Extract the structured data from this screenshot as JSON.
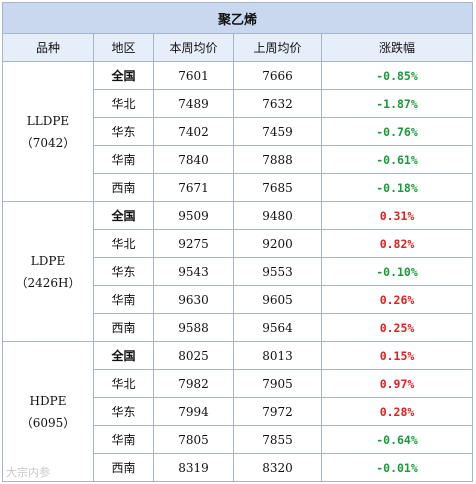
{
  "title": "聚乙烯",
  "headers": [
    "品种",
    "地区",
    "本周均价",
    "上周均价",
    "涨跌幅"
  ],
  "groups": [
    {
      "category": "LLDPE\n（7042）",
      "rows": [
        {
          "region": "全国",
          "this_week": "7601",
          "last_week": "7666",
          "change": "-0.85%",
          "direction": "down"
        },
        {
          "region": "华北",
          "this_week": "7489",
          "last_week": "7632",
          "change": "-1.87%",
          "direction": "down"
        },
        {
          "region": "华东",
          "this_week": "7402",
          "last_week": "7459",
          "change": "-0.76%",
          "direction": "down"
        },
        {
          "region": "华南",
          "this_week": "7840",
          "last_week": "7888",
          "change": "-0.61%",
          "direction": "down"
        },
        {
          "region": "西南",
          "this_week": "7671",
          "last_week": "7685",
          "change": "-0.18%",
          "direction": "down"
        }
      ]
    },
    {
      "category": "LDPE\n（2426H）",
      "rows": [
        {
          "region": "全国",
          "this_week": "9509",
          "last_week": "9480",
          "change": "0.31%",
          "direction": "up"
        },
        {
          "region": "华北",
          "this_week": "9275",
          "last_week": "9200",
          "change": "0.82%",
          "direction": "up"
        },
        {
          "region": "华东",
          "this_week": "9543",
          "last_week": "9553",
          "change": "-0.10%",
          "direction": "down"
        },
        {
          "region": "华南",
          "this_week": "9630",
          "last_week": "9605",
          "change": "0.26%",
          "direction": "up"
        },
        {
          "region": "西南",
          "this_week": "9588",
          "last_week": "9564",
          "change": "0.25%",
          "direction": "up"
        }
      ]
    },
    {
      "category": "HDPE\n（6095）",
      "rows": [
        {
          "region": "全国",
          "this_week": "8025",
          "last_week": "8013",
          "change": "0.15%",
          "direction": "up"
        },
        {
          "region": "华北",
          "this_week": "7982",
          "last_week": "7905",
          "change": "0.97%",
          "direction": "up"
        },
        {
          "region": "华东",
          "this_week": "7994",
          "last_week": "7972",
          "change": "0.28%",
          "direction": "up"
        },
        {
          "region": "华南",
          "this_week": "7805",
          "last_week": "7855",
          "change": "-0.64%",
          "direction": "down"
        },
        {
          "region": "西南",
          "this_week": "8319",
          "last_week": "8320",
          "change": "-0.01%",
          "direction": "down"
        }
      ]
    }
  ],
  "colors": {
    "down": "#1a9a3a",
    "up": "#e02020",
    "header_bg": "#c9d8ee"
  },
  "watermark": "大宗内参"
}
